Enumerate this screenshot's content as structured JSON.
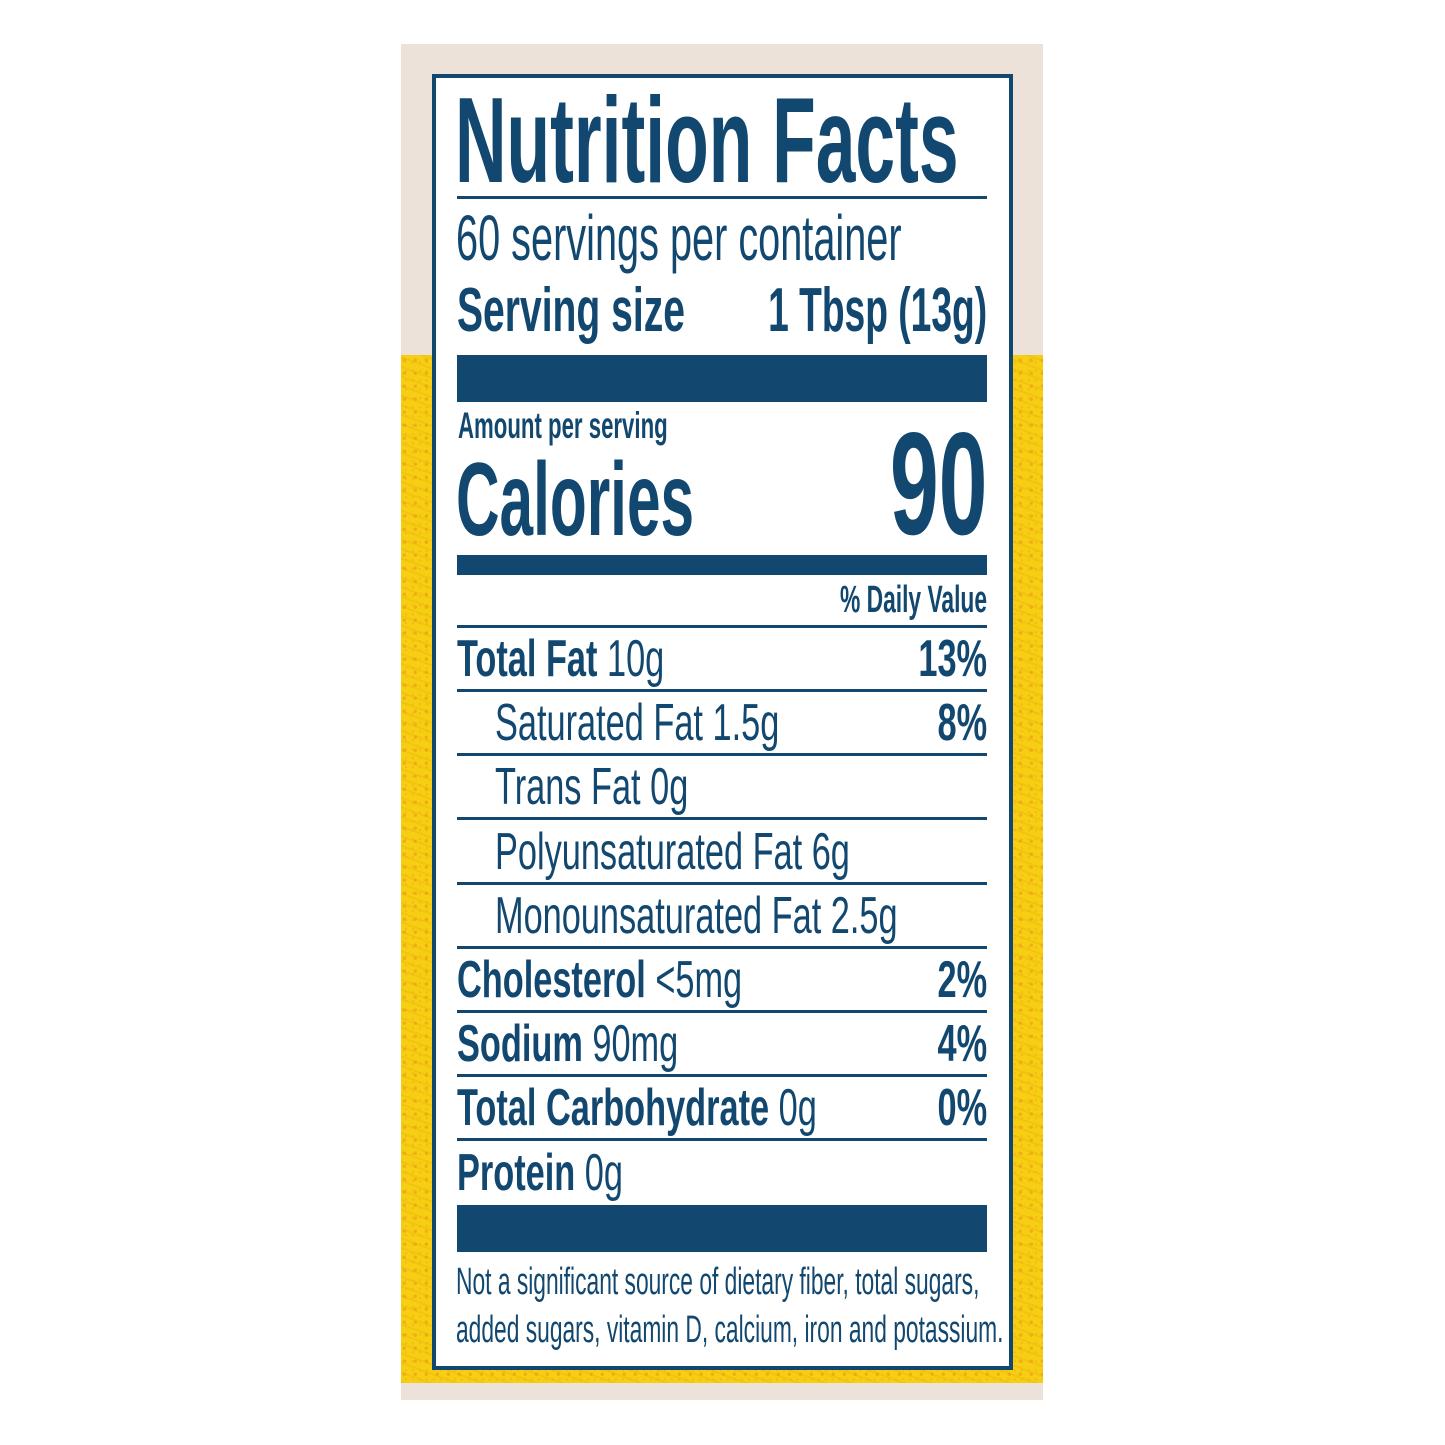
{
  "title": "Nutrition Facts",
  "servings_per_container": "60 servings per container",
  "serving_size": {
    "label": "Serving size",
    "value": "1 Tbsp (13g)"
  },
  "amount_per_serving": "Amount per serving",
  "calories": {
    "label": "Calories",
    "value": "90"
  },
  "daily_value_header": "% Daily Value",
  "nutrients": [
    {
      "name": "Total Fat",
      "amount": "10g",
      "dv": "13%",
      "bold": true
    },
    {
      "name": "Saturated Fat 1.5g",
      "amount": "",
      "dv": "8%",
      "bold": false
    },
    {
      "name": "Trans Fat 0g",
      "amount": "",
      "dv": "",
      "bold": false
    },
    {
      "name": "Polyunsaturated Fat 6g",
      "amount": "",
      "dv": "",
      "bold": false
    },
    {
      "name": "Monounsaturated Fat 2.5g",
      "amount": "",
      "dv": "",
      "bold": false
    },
    {
      "name": "Cholesterol",
      "amount": "<5mg",
      "dv": "2%",
      "bold": true
    },
    {
      "name": "Sodium",
      "amount": "90mg",
      "dv": "4%",
      "bold": true
    },
    {
      "name": "Total Carbohydrate",
      "amount": "0g",
      "dv": "0%",
      "bold": true
    },
    {
      "name": "Protein",
      "amount": "0g",
      "dv": "",
      "bold": true
    }
  ],
  "footnote": [
    "Not a significant source of dietary fiber, total sugars,",
    "added sugars, vitamin D, calcium, iron and potassium."
  ],
  "colors": {
    "ink": "#124870",
    "background_top": "#ece2da",
    "background_yellow": "#f6cf12"
  }
}
